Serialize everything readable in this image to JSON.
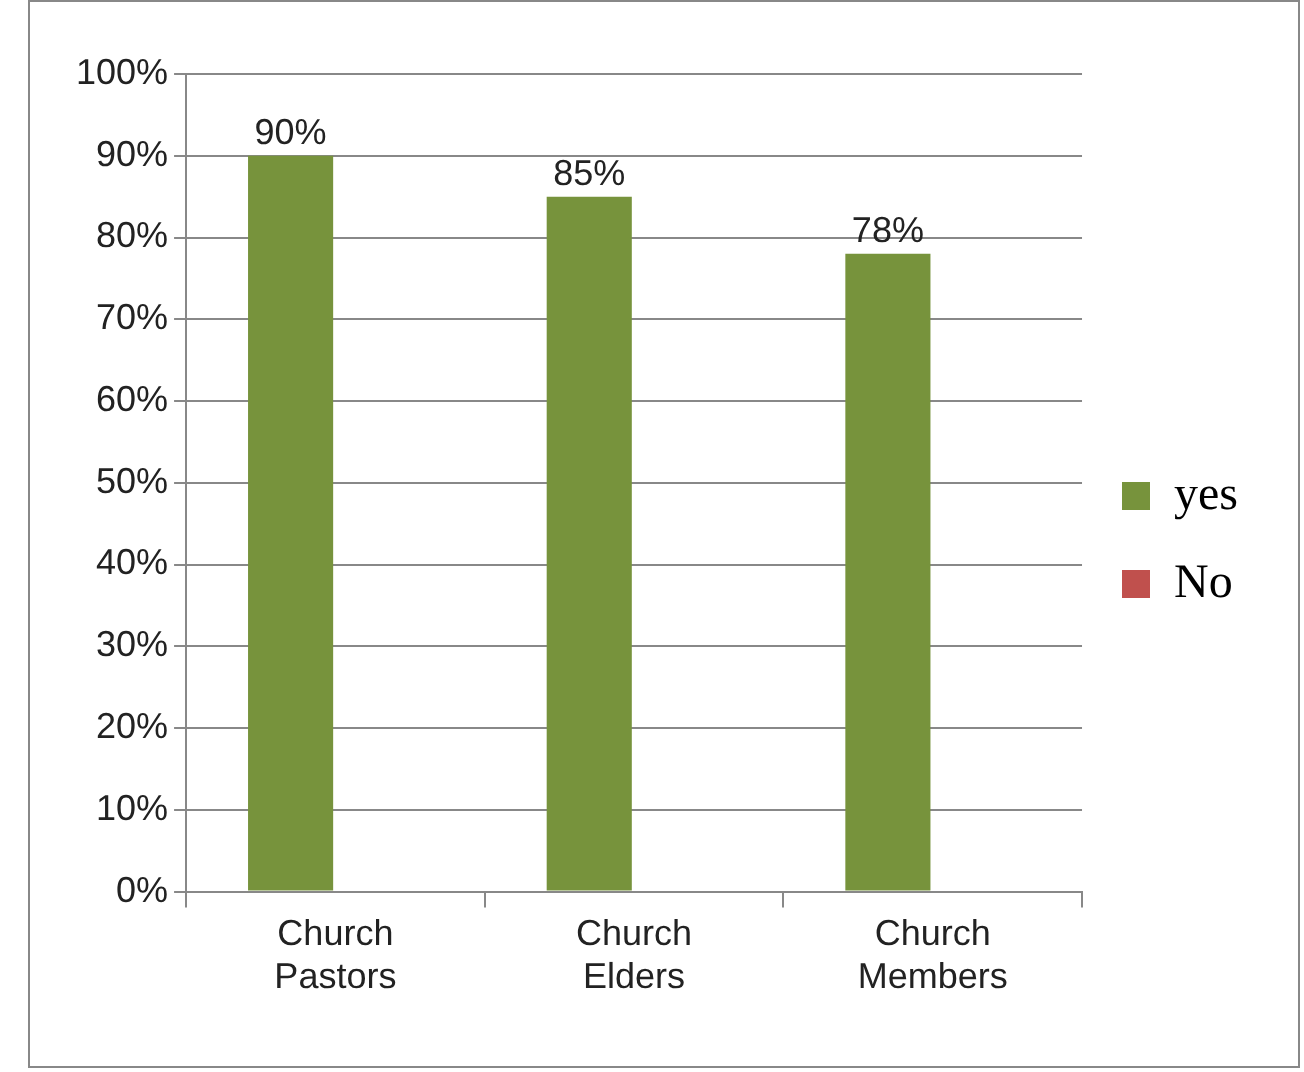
{
  "chart_data": {
    "type": "bar",
    "categories": [
      "Church Pastors",
      "Church Elders",
      "Church Members"
    ],
    "series": [
      {
        "name": "yes",
        "color": "#77933c",
        "values": [
          90,
          85,
          78
        ],
        "value_labels": [
          "90%",
          "85%",
          "78%"
        ]
      },
      {
        "name": "No",
        "color": "#c0504d",
        "values": [
          null,
          null,
          null
        ]
      }
    ],
    "ylim": [
      0,
      100
    ],
    "yticks": [
      {
        "value": 0,
        "label": "0%"
      },
      {
        "value": 10,
        "label": "10%"
      },
      {
        "value": 20,
        "label": "20%"
      },
      {
        "value": 30,
        "label": "30%"
      },
      {
        "value": 40,
        "label": "40%"
      },
      {
        "value": 50,
        "label": "50%"
      },
      {
        "value": 60,
        "label": "60%"
      },
      {
        "value": 70,
        "label": "70%"
      },
      {
        "value": 80,
        "label": "80%"
      },
      {
        "value": 90,
        "label": "90%"
      },
      {
        "value": 100,
        "label": "100%"
      }
    ],
    "grid": "y",
    "legend": "right"
  }
}
